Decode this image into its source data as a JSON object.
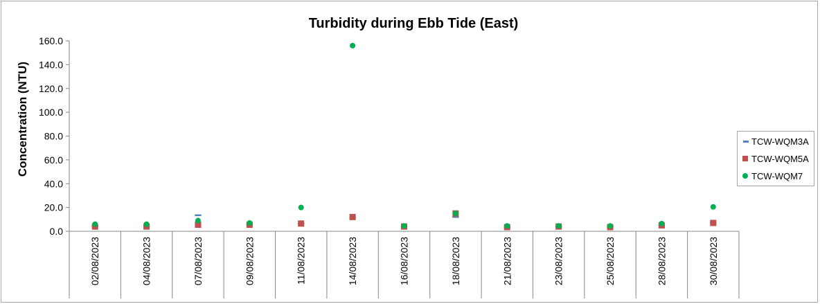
{
  "chart_data": {
    "type": "scatter",
    "title": "Turbidity during Ebb Tide (East)",
    "xlabel": "",
    "ylabel": "Concentration (NTU)",
    "ylim": [
      0,
      160
    ],
    "yticks": [
      "0.0",
      "20.0",
      "40.0",
      "60.0",
      "80.0",
      "100.0",
      "120.0",
      "140.0",
      "160.0"
    ],
    "categories": [
      "02/08/2023",
      "04/08/2023",
      "07/08/2023",
      "09/08/2023",
      "11/08/2023",
      "14/08/2023",
      "16/08/2023",
      "18/08/2023",
      "21/08/2023",
      "23/08/2023",
      "25/08/2023",
      "28/08/2023",
      "30/08/2023"
    ],
    "legend_position": "right",
    "series": [
      {
        "name": "TCW-WQM3A",
        "marker": "dash",
        "color": "#4f81bd",
        "values": [
          4.5,
          4.5,
          13.5,
          5.5,
          6.5,
          11.5,
          4.0,
          12.0,
          3.5,
          4.0,
          4.0,
          5.0,
          7.0
        ]
      },
      {
        "name": "TCW-WQM5A",
        "marker": "square",
        "color": "#c0504d",
        "values": [
          4.0,
          4.0,
          5.5,
          5.5,
          6.5,
          12.0,
          4.0,
          15.0,
          3.5,
          4.0,
          3.5,
          5.0,
          7.0
        ]
      },
      {
        "name": "TCW-WQM7",
        "marker": "circle",
        "color": "#00b050",
        "values": [
          6.0,
          6.0,
          9.0,
          7.0,
          20.0,
          156.0,
          4.5,
          15.0,
          4.5,
          4.5,
          4.5,
          6.5,
          20.5
        ]
      }
    ]
  }
}
